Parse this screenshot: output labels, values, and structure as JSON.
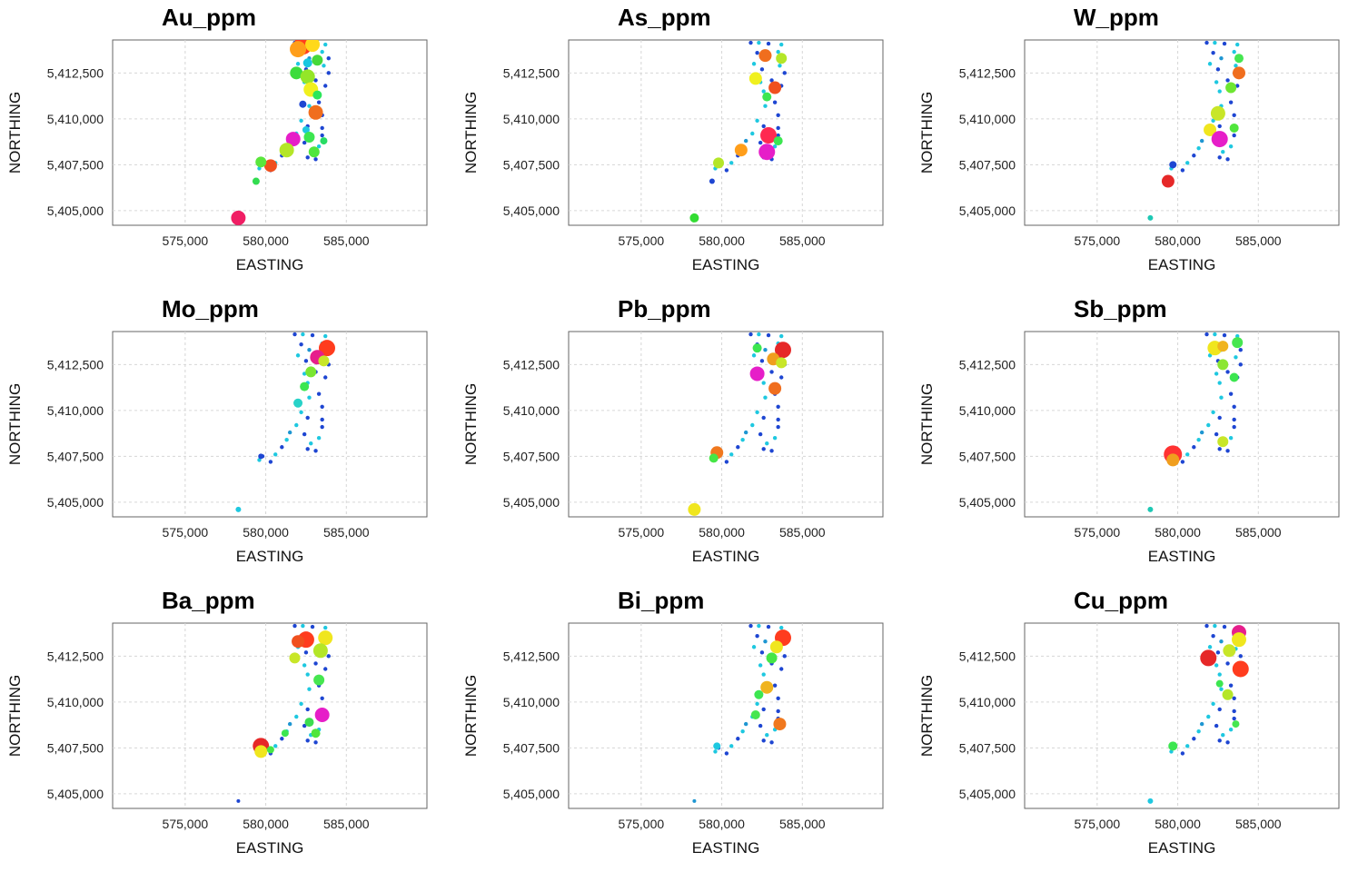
{
  "chart_data": [
    {
      "type": "scatter",
      "title": "Au_ppm",
      "xlabel": "EASTING",
      "ylabel": "NORTHING",
      "xlim": [
        570500,
        590000
      ],
      "ylim": [
        5404200,
        5414300
      ],
      "xticks": [
        {
          "v": 575000,
          "label": "575,000"
        },
        {
          "v": 580000,
          "label": "580,000"
        },
        {
          "v": 585000,
          "label": "585,000"
        }
      ],
      "yticks": [
        {
          "v": 5405000,
          "label": "5,405,000"
        },
        {
          "v": 5407500,
          "label": "5,407,500"
        },
        {
          "v": 5410000,
          "label": "5,410,000"
        },
        {
          "v": 5412500,
          "label": "5,412,500"
        }
      ],
      "grid": true,
      "points": [
        {
          "x": 582300,
          "y": 5414000,
          "r": 10,
          "color": "#ff3c1e"
        },
        {
          "x": 582900,
          "y": 5414050,
          "r": 8,
          "color": "#ffd91a"
        },
        {
          "x": 582000,
          "y": 5413800,
          "r": 9,
          "color": "#ff9e1a"
        },
        {
          "x": 583200,
          "y": 5413200,
          "r": 6,
          "color": "#46d93a"
        },
        {
          "x": 582600,
          "y": 5413050,
          "r": 5,
          "color": "#18c7e0"
        },
        {
          "x": 581900,
          "y": 5412500,
          "r": 7,
          "color": "#3cdc3c"
        },
        {
          "x": 582600,
          "y": 5412300,
          "r": 8,
          "color": "#94e628"
        },
        {
          "x": 582800,
          "y": 5411600,
          "r": 8,
          "color": "#f0f01e"
        },
        {
          "x": 583200,
          "y": 5411300,
          "r": 5,
          "color": "#2ce65a"
        },
        {
          "x": 582300,
          "y": 5410800,
          "r": 4,
          "color": "#1e46d2"
        },
        {
          "x": 583100,
          "y": 5410350,
          "r": 8,
          "color": "#f06e1e"
        },
        {
          "x": 582500,
          "y": 5409400,
          "r": 4,
          "color": "#1ec8e0"
        },
        {
          "x": 581700,
          "y": 5408900,
          "r": 8,
          "color": "#e61ec8"
        },
        {
          "x": 582700,
          "y": 5409000,
          "r": 6,
          "color": "#3ce650"
        },
        {
          "x": 583600,
          "y": 5408800,
          "r": 4,
          "color": "#28dc64"
        },
        {
          "x": 583000,
          "y": 5408200,
          "r": 6,
          "color": "#50e63c"
        },
        {
          "x": 581300,
          "y": 5408300,
          "r": 8,
          "color": "#b4e628"
        },
        {
          "x": 580300,
          "y": 5407450,
          "r": 7,
          "color": "#f0501e"
        },
        {
          "x": 579700,
          "y": 5407650,
          "r": 6,
          "color": "#5ae63c"
        },
        {
          "x": 579400,
          "y": 5406600,
          "r": 4,
          "color": "#32dc50"
        },
        {
          "x": 578300,
          "y": 5404600,
          "r": 8,
          "color": "#f01e64"
        }
      ]
    },
    {
      "type": "scatter",
      "title": "As_ppm",
      "xlabel": "EASTING",
      "ylabel": "NORTHING",
      "xlim": [
        570500,
        590000
      ],
      "ylim": [
        5404200,
        5414300
      ],
      "xticks": [
        {
          "v": 575000,
          "label": "575,000"
        },
        {
          "v": 580000,
          "label": "580,000"
        },
        {
          "v": 585000,
          "label": "585,000"
        }
      ],
      "yticks": [
        {
          "v": 5405000,
          "label": "5,405,000"
        },
        {
          "v": 5407500,
          "label": "5,407,500"
        },
        {
          "v": 5410000,
          "label": "5,410,000"
        },
        {
          "v": 5412500,
          "label": "5,412,500"
        }
      ],
      "grid": true,
      "points": [
        {
          "x": 582700,
          "y": 5413450,
          "r": 7,
          "color": "#f06e1e"
        },
        {
          "x": 583700,
          "y": 5413300,
          "r": 6,
          "color": "#b4e628"
        },
        {
          "x": 582100,
          "y": 5412200,
          "r": 7,
          "color": "#f0f01e"
        },
        {
          "x": 583300,
          "y": 5411700,
          "r": 7,
          "color": "#f0501e"
        },
        {
          "x": 582800,
          "y": 5411200,
          "r": 5,
          "color": "#3ce650"
        },
        {
          "x": 582900,
          "y": 5409100,
          "r": 9,
          "color": "#ff2850"
        },
        {
          "x": 582800,
          "y": 5408200,
          "r": 9,
          "color": "#e61ec8"
        },
        {
          "x": 581200,
          "y": 5408300,
          "r": 7,
          "color": "#ff9e1a"
        },
        {
          "x": 579800,
          "y": 5407600,
          "r": 6,
          "color": "#b4e628"
        },
        {
          "x": 583500,
          "y": 5408800,
          "r": 5,
          "color": "#3ce650"
        },
        {
          "x": 579400,
          "y": 5406600,
          "r": 3,
          "color": "#1e46d2"
        },
        {
          "x": 578300,
          "y": 5404600,
          "r": 5,
          "color": "#32dc32"
        }
      ]
    },
    {
      "type": "scatter",
      "title": "W_ppm",
      "xlabel": "EASTING",
      "ylabel": "NORTHING",
      "xlim": [
        570500,
        590000
      ],
      "ylim": [
        5404200,
        5414300
      ],
      "xticks": [
        {
          "v": 575000,
          "label": "575,000"
        },
        {
          "v": 580000,
          "label": "580,000"
        },
        {
          "v": 585000,
          "label": "585,000"
        }
      ],
      "yticks": [
        {
          "v": 5405000,
          "label": "5,405,000"
        },
        {
          "v": 5407500,
          "label": "5,407,500"
        },
        {
          "v": 5410000,
          "label": "5,410,000"
        },
        {
          "v": 5412500,
          "label": "5,412,500"
        }
      ],
      "grid": true,
      "points": [
        {
          "x": 583800,
          "y": 5412500,
          "r": 7,
          "color": "#f06e1e"
        },
        {
          "x": 583300,
          "y": 5411700,
          "r": 6,
          "color": "#6ee632"
        },
        {
          "x": 582500,
          "y": 5410300,
          "r": 8,
          "color": "#c8e628"
        },
        {
          "x": 582000,
          "y": 5409400,
          "r": 7,
          "color": "#f0e61e"
        },
        {
          "x": 582600,
          "y": 5408900,
          "r": 9,
          "color": "#e61ec8"
        },
        {
          "x": 583500,
          "y": 5409500,
          "r": 5,
          "color": "#50e63c"
        },
        {
          "x": 583800,
          "y": 5413300,
          "r": 5,
          "color": "#46e650"
        },
        {
          "x": 579400,
          "y": 5406600,
          "r": 7,
          "color": "#e62828"
        },
        {
          "x": 579700,
          "y": 5407500,
          "r": 4,
          "color": "#1e46d2"
        },
        {
          "x": 578300,
          "y": 5404600,
          "r": 3,
          "color": "#1ec8b4"
        }
      ]
    },
    {
      "type": "scatter",
      "title": "Mo_ppm",
      "xlabel": "EASTING",
      "ylabel": "NORTHING",
      "xlim": [
        570500,
        590000
      ],
      "ylim": [
        5404200,
        5414300
      ],
      "xticks": [
        {
          "v": 575000,
          "label": "575,000"
        },
        {
          "v": 580000,
          "label": "580,000"
        },
        {
          "v": 585000,
          "label": "585,000"
        }
      ],
      "yticks": [
        {
          "v": 5405000,
          "label": "5,405,000"
        },
        {
          "v": 5407500,
          "label": "5,407,500"
        },
        {
          "v": 5410000,
          "label": "5,410,000"
        },
        {
          "v": 5412500,
          "label": "5,412,500"
        }
      ],
      "grid": true,
      "points": [
        {
          "x": 583800,
          "y": 5413400,
          "r": 9,
          "color": "#ff3c1e"
        },
        {
          "x": 583200,
          "y": 5412900,
          "r": 8,
          "color": "#e61e8c"
        },
        {
          "x": 583600,
          "y": 5412700,
          "r": 6,
          "color": "#c8e628"
        },
        {
          "x": 582800,
          "y": 5412100,
          "r": 6,
          "color": "#7ae632"
        },
        {
          "x": 582400,
          "y": 5411300,
          "r": 5,
          "color": "#3ce650"
        },
        {
          "x": 582000,
          "y": 5410400,
          "r": 5,
          "color": "#28d2c8"
        },
        {
          "x": 579700,
          "y": 5407500,
          "r": 3,
          "color": "#1e46d2"
        },
        {
          "x": 578300,
          "y": 5404600,
          "r": 3,
          "color": "#1ec8e0"
        }
      ]
    },
    {
      "type": "scatter",
      "title": "Pb_ppm",
      "xlabel": "EASTING",
      "ylabel": "NORTHING",
      "xlim": [
        570500,
        590000
      ],
      "ylim": [
        5404200,
        5414300
      ],
      "xticks": [
        {
          "v": 575000,
          "label": "575,000"
        },
        {
          "v": 580000,
          "label": "580,000"
        },
        {
          "v": 585000,
          "label": "585,000"
        }
      ],
      "yticks": [
        {
          "v": 5405000,
          "label": "5,405,000"
        },
        {
          "v": 5407500,
          "label": "5,407,500"
        },
        {
          "v": 5410000,
          "label": "5,410,000"
        },
        {
          "v": 5412500,
          "label": "5,412,500"
        }
      ],
      "grid": true,
      "points": [
        {
          "x": 583800,
          "y": 5413300,
          "r": 9,
          "color": "#e62828"
        },
        {
          "x": 583200,
          "y": 5412800,
          "r": 7,
          "color": "#f09e1e"
        },
        {
          "x": 583700,
          "y": 5412600,
          "r": 6,
          "color": "#c8e628"
        },
        {
          "x": 582200,
          "y": 5412000,
          "r": 8,
          "color": "#e61ec8"
        },
        {
          "x": 583300,
          "y": 5411200,
          "r": 7,
          "color": "#f06e1e"
        },
        {
          "x": 582200,
          "y": 5413400,
          "r": 5,
          "color": "#3ce650"
        },
        {
          "x": 579700,
          "y": 5407700,
          "r": 7,
          "color": "#f0781e"
        },
        {
          "x": 579500,
          "y": 5407400,
          "r": 5,
          "color": "#46e646"
        },
        {
          "x": 578300,
          "y": 5404600,
          "r": 7,
          "color": "#f0e61e"
        }
      ]
    },
    {
      "type": "scatter",
      "title": "Sb_ppm",
      "xlabel": "EASTING",
      "ylabel": "NORTHING",
      "xlim": [
        570500,
        590000
      ],
      "ylim": [
        5404200,
        5414300
      ],
      "xticks": [
        {
          "v": 575000,
          "label": "575,000"
        },
        {
          "v": 580000,
          "label": "580,000"
        },
        {
          "v": 585000,
          "label": "585,000"
        }
      ],
      "yticks": [
        {
          "v": 5405000,
          "label": "5,405,000"
        },
        {
          "v": 5407500,
          "label": "5,407,500"
        },
        {
          "v": 5410000,
          "label": "5,410,000"
        },
        {
          "v": 5412500,
          "label": "5,412,500"
        }
      ],
      "grid": true,
      "points": [
        {
          "x": 582300,
          "y": 5413400,
          "r": 8,
          "color": "#f0e61e"
        },
        {
          "x": 582800,
          "y": 5413500,
          "r": 6,
          "color": "#f0b41e"
        },
        {
          "x": 583700,
          "y": 5413700,
          "r": 6,
          "color": "#46e650"
        },
        {
          "x": 582800,
          "y": 5412500,
          "r": 6,
          "color": "#8ce632"
        },
        {
          "x": 583500,
          "y": 5411800,
          "r": 5,
          "color": "#3ce650"
        },
        {
          "x": 582800,
          "y": 5408300,
          "r": 6,
          "color": "#c8e628"
        },
        {
          "x": 579700,
          "y": 5407600,
          "r": 10,
          "color": "#ff3232"
        },
        {
          "x": 579700,
          "y": 5407300,
          "r": 7,
          "color": "#f09e1e"
        },
        {
          "x": 578300,
          "y": 5404600,
          "r": 3,
          "color": "#1ec8b4"
        }
      ]
    },
    {
      "type": "scatter",
      "title": "Ba_ppm",
      "xlabel": "EASTING",
      "ylabel": "NORTHING",
      "xlim": [
        570500,
        590000
      ],
      "ylim": [
        5404200,
        5414300
      ],
      "xticks": [
        {
          "v": 575000,
          "label": "575,000"
        },
        {
          "v": 580000,
          "label": "580,000"
        },
        {
          "v": 585000,
          "label": "585,000"
        }
      ],
      "yticks": [
        {
          "v": 5405000,
          "label": "5,405,000"
        },
        {
          "v": 5407500,
          "label": "5,407,500"
        },
        {
          "v": 5410000,
          "label": "5,410,000"
        },
        {
          "v": 5412500,
          "label": "5,412,500"
        }
      ],
      "grid": true,
      "points": [
        {
          "x": 582500,
          "y": 5413400,
          "r": 9,
          "color": "#ff3c1e"
        },
        {
          "x": 582000,
          "y": 5413300,
          "r": 7,
          "color": "#f0501e"
        },
        {
          "x": 583700,
          "y": 5413500,
          "r": 8,
          "color": "#f0e61e"
        },
        {
          "x": 583400,
          "y": 5412800,
          "r": 8,
          "color": "#b4e628"
        },
        {
          "x": 581800,
          "y": 5412400,
          "r": 6,
          "color": "#c8e628"
        },
        {
          "x": 583300,
          "y": 5411200,
          "r": 6,
          "color": "#46e650"
        },
        {
          "x": 583500,
          "y": 5409300,
          "r": 8,
          "color": "#e61ec8"
        },
        {
          "x": 583100,
          "y": 5408300,
          "r": 5,
          "color": "#50e63c"
        },
        {
          "x": 582700,
          "y": 5408900,
          "r": 5,
          "color": "#3cdc50"
        },
        {
          "x": 579700,
          "y": 5407600,
          "r": 9,
          "color": "#e62828"
        },
        {
          "x": 579700,
          "y": 5407300,
          "r": 7,
          "color": "#f0e61e"
        },
        {
          "x": 580300,
          "y": 5407400,
          "r": 4,
          "color": "#46e646"
        },
        {
          "x": 581200,
          "y": 5408300,
          "r": 4,
          "color": "#3ce650"
        },
        {
          "x": 578300,
          "y": 5404600,
          "r": 2,
          "color": "#1e46d2"
        }
      ]
    },
    {
      "type": "scatter",
      "title": "Bi_ppm",
      "xlabel": "EASTING",
      "ylabel": "NORTHING",
      "xlim": [
        570500,
        590000
      ],
      "ylim": [
        5404200,
        5414300
      ],
      "xticks": [
        {
          "v": 575000,
          "label": "575,000"
        },
        {
          "v": 580000,
          "label": "580,000"
        },
        {
          "v": 585000,
          "label": "585,000"
        }
      ],
      "yticks": [
        {
          "v": 5405000,
          "label": "5,405,000"
        },
        {
          "v": 5407500,
          "label": "5,407,500"
        },
        {
          "v": 5410000,
          "label": "5,410,000"
        },
        {
          "v": 5412500,
          "label": "5,412,500"
        }
      ],
      "grid": true,
      "points": [
        {
          "x": 583800,
          "y": 5413500,
          "r": 9,
          "color": "#ff3c1e"
        },
        {
          "x": 583400,
          "y": 5413000,
          "r": 7,
          "color": "#f0e61e"
        },
        {
          "x": 583100,
          "y": 5412400,
          "r": 6,
          "color": "#46e646"
        },
        {
          "x": 582800,
          "y": 5410800,
          "r": 7,
          "color": "#f0b41e"
        },
        {
          "x": 582300,
          "y": 5410400,
          "r": 5,
          "color": "#3ce650"
        },
        {
          "x": 583600,
          "y": 5408800,
          "r": 7,
          "color": "#f0781e"
        },
        {
          "x": 582100,
          "y": 5409300,
          "r": 5,
          "color": "#46e650"
        },
        {
          "x": 579700,
          "y": 5407600,
          "r": 4,
          "color": "#1ec8e0"
        },
        {
          "x": 578300,
          "y": 5404600,
          "r": 2,
          "color": "#1e96d2"
        }
      ]
    },
    {
      "type": "scatter",
      "title": "Cu_ppm",
      "xlabel": "EASTING",
      "ylabel": "NORTHING",
      "xlim": [
        570500,
        590000
      ],
      "ylim": [
        5404200,
        5414300
      ],
      "xticks": [
        {
          "v": 575000,
          "label": "575,000"
        },
        {
          "v": 580000,
          "label": "580,000"
        },
        {
          "v": 585000,
          "label": "585,000"
        }
      ],
      "yticks": [
        {
          "v": 5405000,
          "label": "5,405,000"
        },
        {
          "v": 5407500,
          "label": "5,407,500"
        },
        {
          "v": 5410000,
          "label": "5,410,000"
        },
        {
          "v": 5412500,
          "label": "5,412,500"
        }
      ],
      "grid": true,
      "points": [
        {
          "x": 583800,
          "y": 5413800,
          "r": 8,
          "color": "#e61e8c"
        },
        {
          "x": 583800,
          "y": 5413400,
          "r": 8,
          "color": "#f0e61e"
        },
        {
          "x": 583200,
          "y": 5412800,
          "r": 7,
          "color": "#c8e628"
        },
        {
          "x": 581900,
          "y": 5412400,
          "r": 9,
          "color": "#e62828"
        },
        {
          "x": 583900,
          "y": 5411800,
          "r": 9,
          "color": "#ff3c1e"
        },
        {
          "x": 583100,
          "y": 5410400,
          "r": 6,
          "color": "#b4e628"
        },
        {
          "x": 582600,
          "y": 5411000,
          "r": 4,
          "color": "#3ce650"
        },
        {
          "x": 583600,
          "y": 5408800,
          "r": 4,
          "color": "#46e650"
        },
        {
          "x": 579700,
          "y": 5407600,
          "r": 5,
          "color": "#3ce650"
        },
        {
          "x": 578300,
          "y": 5404600,
          "r": 3,
          "color": "#1ec8e0"
        }
      ]
    }
  ]
}
